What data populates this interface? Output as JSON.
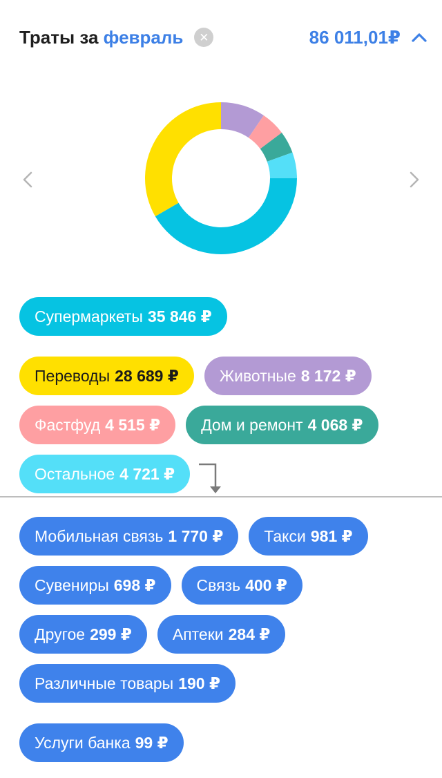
{
  "header": {
    "title_prefix": "Траты за",
    "month": "февраль",
    "total": "86 011,01₽",
    "clear_icon": "close-icon",
    "collapse_icon": "chevron-up-icon"
  },
  "chart_data": {
    "type": "pie",
    "categories": [
      "Супермаркеты",
      "Переводы",
      "Животные",
      "Фастфуд",
      "Дом и ремонт",
      "Остальное"
    ],
    "values": [
      35846,
      28689,
      8172,
      4515,
      4068,
      4721
    ],
    "colors": [
      "#06c3e2",
      "#ffe000",
      "#b39ad4",
      "#fe9fa2",
      "#3aa99a",
      "#54dff8"
    ],
    "donut": true
  },
  "categories": [
    {
      "name": "Супермаркеты",
      "amount": "35 846 ₽",
      "color": "#06c3e2",
      "text": "light"
    },
    {
      "name": "Переводы",
      "amount": "28 689 ₽",
      "color": "#ffe000",
      "text": "dark"
    },
    {
      "name": "Животные",
      "amount": "8 172 ₽",
      "color": "#b39ad4",
      "text": "light"
    },
    {
      "name": "Фастфуд",
      "amount": "4 515 ₽",
      "color": "#fe9fa2",
      "text": "light"
    },
    {
      "name": "Дом и ремонт",
      "amount": "4 068 ₽",
      "color": "#3aa99a",
      "text": "light"
    },
    {
      "name": "Остальное",
      "amount": "4 721 ₽",
      "color": "#54dff8",
      "text": "light"
    }
  ],
  "other_categories": [
    {
      "name": "Мобильная связь",
      "amount": "1 770 ₽"
    },
    {
      "name": "Такси",
      "amount": "981 ₽"
    },
    {
      "name": "Сувениры",
      "amount": "698 ₽"
    },
    {
      "name": "Связь",
      "amount": "400 ₽"
    },
    {
      "name": "Другое",
      "amount": "299 ₽"
    },
    {
      "name": "Аптеки",
      "amount": "284 ₽"
    },
    {
      "name": "Различные товары",
      "amount": "190 ₽"
    },
    {
      "name": "Услуги банка",
      "amount": "99 ₽"
    }
  ],
  "other_color": "#3f82eb",
  "accent_color": "#3d80e6"
}
